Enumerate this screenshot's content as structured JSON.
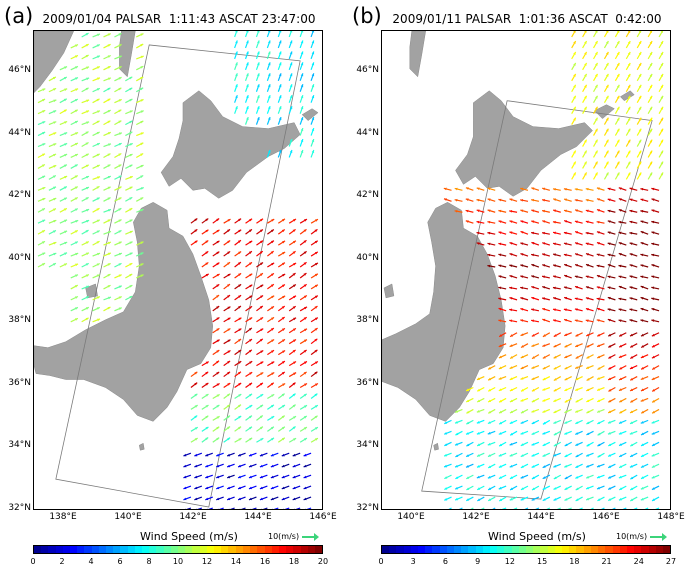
{
  "figure": {
    "colors": {
      "land": "#a2a2a2",
      "swath": "#7a7a7a",
      "reference_arrow": "#3cd47a"
    },
    "panels": [
      {
        "id": "a",
        "letter": "(a)",
        "title": "2009/01/04 PALSAR  1:11:43 ASCAT 23:47:00",
        "lat_ticks": [
          "46°N",
          "44°N",
          "42°N",
          "40°N",
          "38°N",
          "36°N",
          "34°N",
          "32°N"
        ],
        "lon_ticks": [
          "138°E",
          "140°E",
          "142°E",
          "144°E",
          "146°E"
        ],
        "colorbar": {
          "title": "Wind Speed (m/s)",
          "reference": "10(m/s)",
          "ticks": [
            "0",
            "2",
            "4",
            "6",
            "8",
            "10",
            "12",
            "14",
            "16",
            "18",
            "20"
          ],
          "range": [
            0,
            20
          ]
        }
      },
      {
        "id": "b",
        "letter": "(b)",
        "title": "2009/01/11 PALSAR  1:01:36 ASCAT  0:42:00",
        "lat_ticks": [
          "46°N",
          "44°N",
          "42°N",
          "40°N",
          "38°N",
          "36°N",
          "34°N",
          "32°N"
        ],
        "lon_ticks": [
          "140°E",
          "142°E",
          "144°E",
          "146°E",
          "148°E"
        ],
        "colorbar": {
          "title": "Wind Speed (m/s)",
          "reference": "10(m/s)",
          "ticks": [
            "0",
            "3",
            "6",
            "9",
            "12",
            "15",
            "18",
            "21",
            "24",
            "27"
          ],
          "range": [
            0,
            27
          ]
        }
      }
    ]
  }
}
